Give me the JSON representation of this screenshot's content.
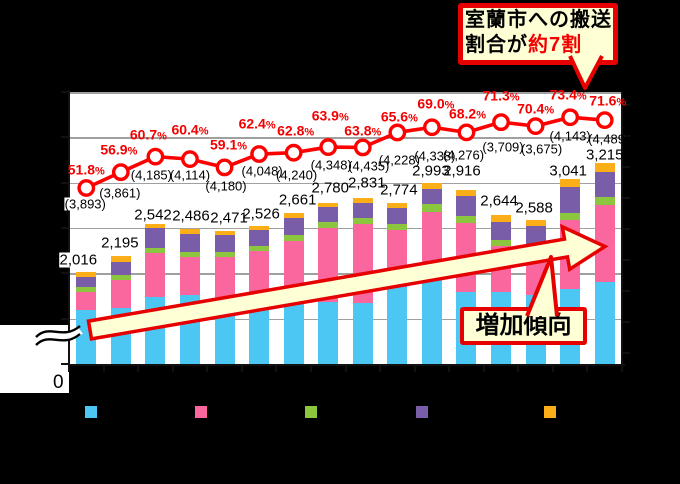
{
  "colors": {
    "background": "#000000",
    "bar_blue": "#4CC7F3",
    "bar_pink": "#F9679E",
    "bar_green": "#8CC63F",
    "bar_purple": "#7A5DA8",
    "bar_orange": "#FBAE17",
    "line_red": "#FF0000",
    "border_red": "#E60000",
    "grid_gray": "#A0A0A0",
    "callout_fill": "#FFFFD6"
  },
  "callout_top": {
    "line1": "室蘭市への搬送",
    "line2_prefix": "割合が",
    "line2_highlight": "約7割"
  },
  "trend_callout": {
    "label": "増加傾向"
  },
  "y_axis": {
    "origin_label": "0",
    "has_break": true
  },
  "legend": {
    "items": [
      {
        "name": "series-blue",
        "color_key": "bar_blue"
      },
      {
        "name": "series-pink",
        "color_key": "bar_pink"
      },
      {
        "name": "series-green",
        "color_key": "bar_green"
      },
      {
        "name": "series-purple",
        "color_key": "bar_purple"
      },
      {
        "name": "series-orange",
        "color_key": "bar_orange"
      }
    ]
  },
  "chart_data": {
    "type": "combo-stacked-bar-line",
    "n_categories": 16,
    "x_tick_labels_visible": false,
    "gridline_value_step": 500,
    "stack_order": [
      "blue",
      "pink",
      "green",
      "purple",
      "orange"
    ],
    "bars": {
      "total_labels": [
        "2,016",
        "2,195",
        "2,542",
        "2,486",
        "2,471",
        "2,526",
        "2,661",
        "2,780",
        "2,831",
        "2,774",
        "2,993",
        "2,916",
        "2,644",
        "2,588",
        "3,041",
        "3,215"
      ],
      "totals": [
        2016,
        2195,
        2542,
        2486,
        2471,
        2526,
        2661,
        2780,
        2831,
        2774,
        2993,
        2916,
        2644,
        2588,
        3041,
        3215
      ],
      "segments_estimated": [
        [
          1595,
          202,
          55,
          111,
          53
        ],
        [
          1614,
          312,
          55,
          147,
          67
        ],
        [
          1742,
          479,
          55,
          221,
          45
        ],
        [
          1760,
          423,
          55,
          192,
          56
        ],
        [
          1738,
          439,
          61,
          185,
          48
        ],
        [
          1745,
          501,
          59,
          173,
          48
        ],
        [
          1700,
          660,
          63,
          184,
          54
        ],
        [
          1686,
          817,
          60,
          166,
          51
        ],
        [
          1669,
          875,
          63,
          166,
          58
        ],
        [
          1852,
          626,
          66,
          174,
          56
        ],
        [
          1945,
          735,
          85,
          165,
          63
        ],
        [
          1797,
          755,
          80,
          221,
          63
        ],
        [
          1797,
          504,
          66,
          203,
          74
        ],
        [
          1760,
          497,
          53,
          215,
          63
        ],
        [
          1823,
          765,
          81,
          287,
          85
        ],
        [
          1908,
          846,
          85,
          283,
          93
        ]
      ]
    },
    "line": {
      "percents": [
        51.8,
        56.9,
        60.7,
        60.4,
        59.1,
        62.4,
        62.8,
        63.9,
        63.8,
        65.6,
        69.0,
        68.2,
        71.3,
        70.4,
        73.4,
        71.6
      ],
      "percent_labels": [
        "51.8%",
        "56.9%",
        "60.7%",
        "60.4%",
        "59.1%",
        "62.4%",
        "62.8%",
        "63.9%",
        "63.8%",
        "65.6%",
        "69.0%",
        "68.2%",
        "71.3%",
        "70.4%",
        "73.4%",
        "71.6%"
      ],
      "paren_labels": [
        "(3,893)",
        "(3,861)",
        "(4,185)",
        "(4,114)",
        "(4,180)",
        "(4,048)",
        "(4,240)",
        "(4,348)",
        "(4,435)",
        "(4,228)",
        "(4,338)",
        "(4,276)",
        "(3,709)",
        "(3,675)",
        "(4,143)",
        "(4,489)"
      ],
      "paren_values": [
        3893,
        3861,
        4185,
        4114,
        4180,
        4048,
        4240,
        4348,
        4435,
        4228,
        4338,
        4276,
        3709,
        3675,
        4143,
        4489
      ]
    }
  }
}
